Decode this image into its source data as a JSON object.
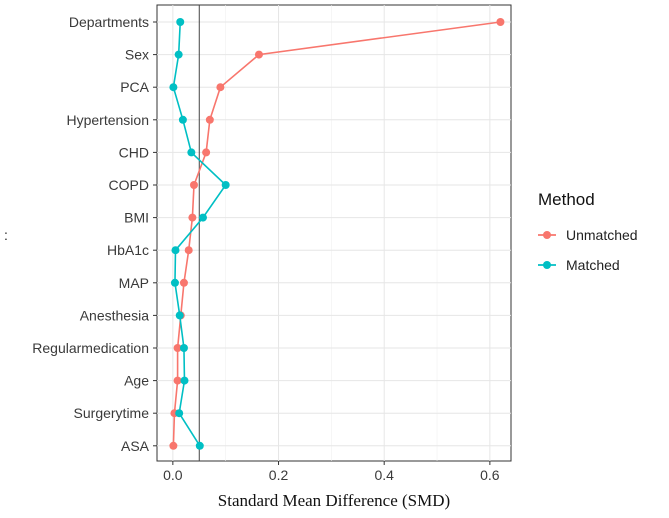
{
  "chart_data": {
    "type": "line",
    "title": "",
    "xlabel": "Standard Mean Difference (SMD)",
    "ylabel": "",
    "xlim": [
      -0.03,
      0.64
    ],
    "x_ticks": [
      0.0,
      0.2,
      0.4,
      0.6
    ],
    "x_tick_labels": [
      "0.0",
      "0.2",
      "0.4",
      "0.6"
    ],
    "reference_line": 0.05,
    "grid": true,
    "categories": [
      "Departments",
      "Sex",
      "PCA",
      "Hypertension",
      "CHD",
      "COPD",
      "BMI",
      "HbA1c",
      "MAP",
      "Anesthesia",
      "Regularmedication",
      "Age",
      "Surgerytime",
      "ASA"
    ],
    "series": [
      {
        "name": "Unmatched",
        "color": "#F8766D",
        "values": [
          0.62,
          0.163,
          0.09,
          0.07,
          0.063,
          0.04,
          0.037,
          0.03,
          0.021,
          0.015,
          0.009,
          0.009,
          0.003,
          0.001
        ]
      },
      {
        "name": "Matched",
        "color": "#00BFC4",
        "values": [
          0.014,
          0.011,
          0.001,
          0.019,
          0.035,
          0.1,
          0.057,
          0.005,
          0.004,
          0.013,
          0.021,
          0.022,
          0.012,
          0.051
        ]
      }
    ],
    "legend": {
      "title": "Method",
      "position": "right",
      "items": [
        "Unmatched",
        "Matched"
      ]
    }
  },
  "stray_label": ":"
}
